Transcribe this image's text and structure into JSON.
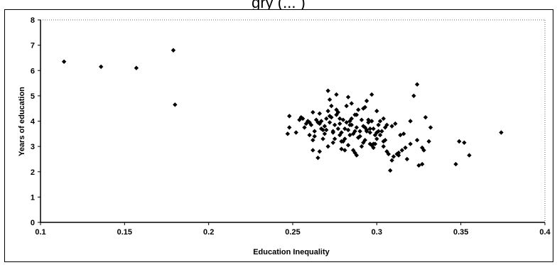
{
  "title_fragment": "gry (... )",
  "chart_data": {
    "type": "scatter",
    "title": "",
    "xlabel": "Education Inequality",
    "ylabel": "Years of education",
    "xlim": [
      0.1,
      0.4
    ],
    "ylim": [
      0,
      8
    ],
    "xticks": [
      0.1,
      0.15,
      0.2,
      0.25,
      0.3,
      0.35,
      0.4
    ],
    "xtick_labels": [
      "0.1",
      "0.15",
      "0.2",
      "0.25",
      "0.3",
      "0.35",
      "0.4"
    ],
    "yticks": [
      0,
      1,
      2,
      3,
      4,
      5,
      6,
      7,
      8
    ],
    "ytick_labels": [
      "0",
      "1",
      "2",
      "3",
      "4",
      "5",
      "6",
      "7",
      "8"
    ],
    "grid": false,
    "legend": "none",
    "marker": "diamond",
    "marker_color": "#000000",
    "series": [
      {
        "x": [
          0.114,
          0.136,
          0.157,
          0.179,
          0.18,
          0.247,
          0.248,
          0.248,
          0.252,
          0.255,
          0.256,
          0.258,
          0.259,
          0.261,
          0.262,
          0.263,
          0.264,
          0.265,
          0.266,
          0.267,
          0.268,
          0.269,
          0.27,
          0.271,
          0.272,
          0.273,
          0.274,
          0.275,
          0.276,
          0.277,
          0.278,
          0.279,
          0.28,
          0.281,
          0.282,
          0.283,
          0.284,
          0.285,
          0.286,
          0.287,
          0.288,
          0.289,
          0.29,
          0.291,
          0.292,
          0.293,
          0.294,
          0.295,
          0.296,
          0.297,
          0.298,
          0.299,
          0.3,
          0.301,
          0.302,
          0.303,
          0.304,
          0.305,
          0.306,
          0.308,
          0.309,
          0.31,
          0.312,
          0.313,
          0.315,
          0.316,
          0.318,
          0.32,
          0.322,
          0.324,
          0.325,
          0.327,
          0.329,
          0.331,
          0.332,
          0.347,
          0.349,
          0.352,
          0.355,
          0.374,
          0.254,
          0.257,
          0.26,
          0.263,
          0.266,
          0.269,
          0.272,
          0.275,
          0.278,
          0.281,
          0.284,
          0.287,
          0.29,
          0.293,
          0.296,
          0.299,
          0.302,
          0.305,
          0.26,
          0.262,
          0.265,
          0.268,
          0.271,
          0.274,
          0.277,
          0.28,
          0.283,
          0.286,
          0.289,
          0.292,
          0.295,
          0.298,
          0.301,
          0.304,
          0.307,
          0.272,
          0.276,
          0.279,
          0.282,
          0.285,
          0.288,
          0.291,
          0.294,
          0.297,
          0.3,
          0.311,
          0.314,
          0.317,
          0.324,
          0.327,
          0.271,
          0.274,
          0.278,
          0.283,
          0.287,
          0.292,
          0.296,
          0.3,
          0.304,
          0.309,
          0.266,
          0.27,
          0.276,
          0.281,
          0.285,
          0.289,
          0.293,
          0.297,
          0.262,
          0.267,
          0.273,
          0.279,
          0.284,
          0.288,
          0.294,
          0.298,
          0.306,
          0.313,
          0.32,
          0.328
        ],
        "y": [
          6.35,
          6.15,
          6.1,
          6.8,
          4.65,
          3.5,
          3.75,
          4.2,
          3.55,
          4.15,
          4.1,
          3.9,
          4.0,
          3.85,
          2.85,
          3.4,
          4.05,
          3.95,
          2.8,
          3.7,
          3.65,
          3.8,
          4.1,
          5.2,
          3.95,
          4.15,
          3.6,
          3.85,
          4.25,
          3.7,
          3.45,
          3.55,
          4.05,
          3.3,
          3.95,
          3.65,
          3.45,
          4.1,
          3.5,
          4.25,
          3.75,
          3.35,
          3.6,
          4.05,
          3.8,
          3.25,
          3.65,
          3.95,
          3.1,
          4.0,
          3.7,
          3.45,
          3.3,
          3.85,
          4.0,
          3.6,
          3.2,
          3.75,
          3.85,
          2.05,
          3.8,
          2.6,
          2.7,
          2.75,
          2.85,
          3.5,
          2.5,
          4.0,
          5.0,
          5.45,
          2.25,
          2.3,
          4.15,
          3.2,
          3.75,
          2.3,
          3.2,
          3.15,
          2.65,
          3.55,
          4.05,
          3.75,
          3.95,
          3.6,
          3.9,
          3.5,
          4.2,
          3.3,
          3.9,
          3.7,
          4.0,
          3.6,
          3.4,
          3.75,
          3.55,
          3.1,
          3.45,
          3.25,
          3.45,
          4.35,
          2.55,
          3.3,
          3.0,
          3.15,
          4.35,
          3.2,
          3.05,
          2.85,
          4.45,
          3.15,
          4.05,
          2.95,
          3.6,
          3.0,
          2.7,
          4.85,
          5.05,
          3.2,
          4.6,
          3.85,
          2.65,
          3.0,
          4.8,
          3.05,
          3.55,
          3.9,
          3.45,
          2.95,
          3.25,
          2.95,
          4.4,
          3.55,
          4.1,
          4.95,
          2.75,
          4.5,
          3.7,
          4.4,
          4.1,
          2.45,
          4.3,
          3.65,
          4.45,
          2.85,
          4.7,
          3.35,
          4.55,
          5.05,
          3.25,
          4.0,
          4.6,
          2.9,
          3.85,
          4.25,
          3.6,
          3.1,
          2.8,
          2.65,
          3.1,
          2.85
        ]
      }
    ]
  }
}
